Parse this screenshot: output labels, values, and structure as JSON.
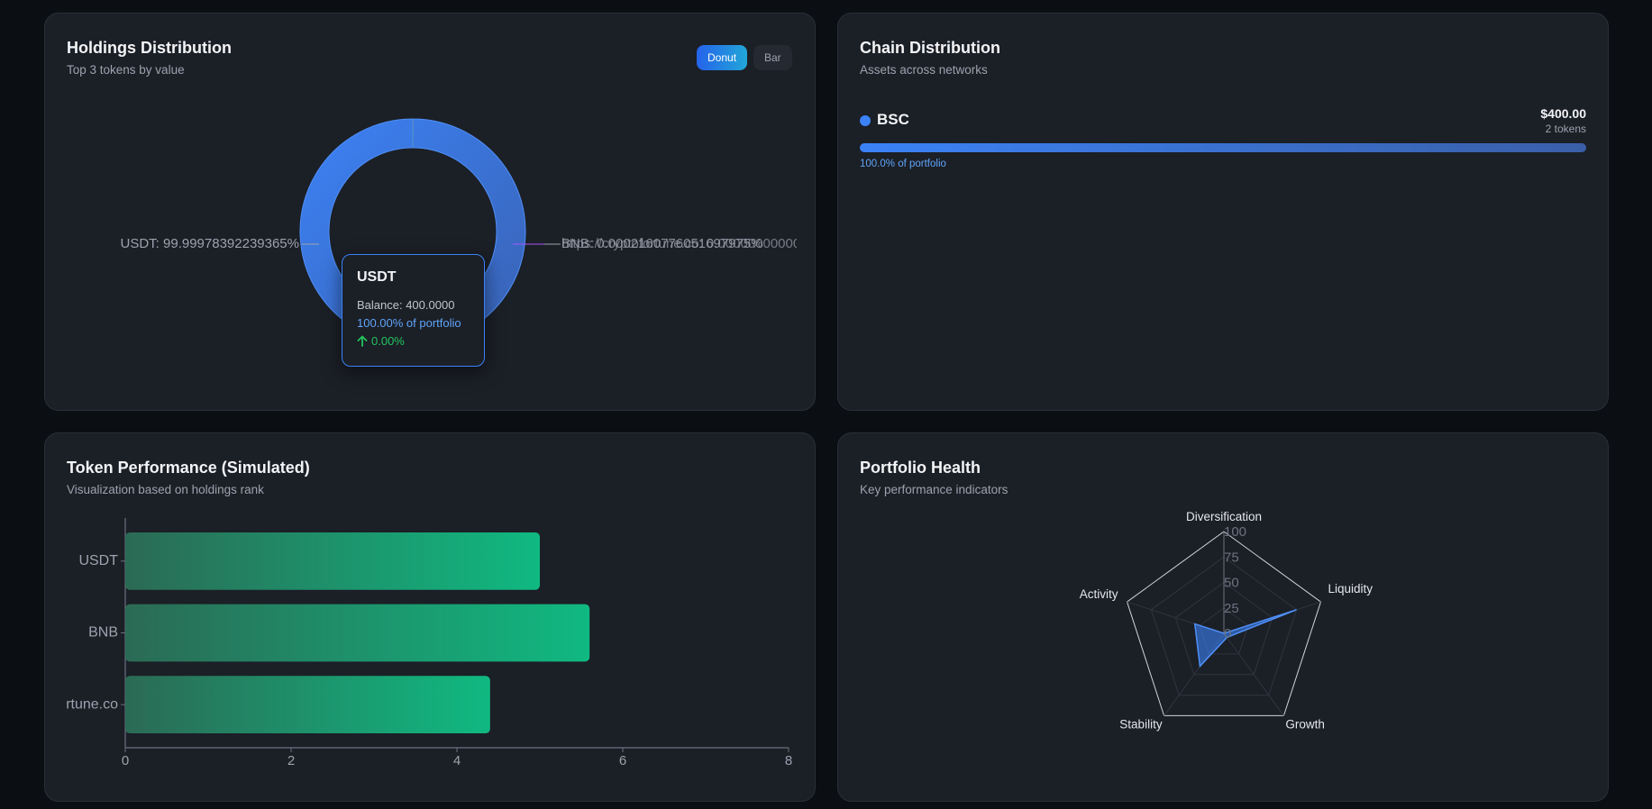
{
  "holdings": {
    "title": "Holdings Distribution",
    "subtitle": "Top 3 tokens by value",
    "toggle_donut": "Donut",
    "toggle_bar": "Bar",
    "label_left": "USDT: 99.99978392239365%",
    "label_right_1": "BNB: 0.0002160776051697975%",
    "label_right_2": "https://cryptofortune.co: 0.00000000000001%",
    "tooltip": {
      "title": "USDT",
      "balance": "Balance: 400.0000",
      "portfolio": "100.00% of portfolio",
      "change": "0.00%"
    },
    "colors": {
      "accent": "#3b82f6",
      "accent_dark": "#3a62b3"
    }
  },
  "chain": {
    "title": "Chain Distribution",
    "subtitle": "Assets across networks",
    "items": [
      {
        "name": "BSC",
        "value": "$400.00",
        "tokens": "2 tokens",
        "percent_label": "100.0% of portfolio",
        "fill_fraction": 1.0,
        "color": "#3b82f6"
      }
    ]
  },
  "performance": {
    "title": "Token Performance (Simulated)",
    "subtitle": "Visualization based on holdings rank"
  },
  "health": {
    "title": "Portfolio Health",
    "subtitle": "Key performance indicators"
  },
  "chart_data": [
    {
      "type": "pie",
      "title": "Holdings Distribution",
      "categories": [
        "USDT",
        "BNB",
        "https://cryptofortune.co"
      ],
      "values": [
        99.99978392239365,
        0.0002160776051697975,
        1e-14
      ]
    },
    {
      "type": "bar",
      "orientation": "horizontal",
      "title": "Token Performance (Simulated)",
      "categories": [
        "USDT",
        "BNB",
        "rtune.co"
      ],
      "values": [
        5.0,
        5.6,
        4.4
      ],
      "xlim": [
        0,
        8
      ],
      "xticks": [
        "0",
        "2",
        "4",
        "6",
        "8"
      ]
    },
    {
      "type": "radar",
      "title": "Portfolio Health",
      "categories": [
        "Diversification",
        "Liquidity",
        "Growth",
        "Stability",
        "Activity"
      ],
      "values": [
        0,
        75,
        5,
        40,
        30
      ],
      "rlim": [
        0,
        100
      ],
      "rticks": [
        "0",
        "25",
        "50",
        "75",
        "100"
      ]
    }
  ]
}
